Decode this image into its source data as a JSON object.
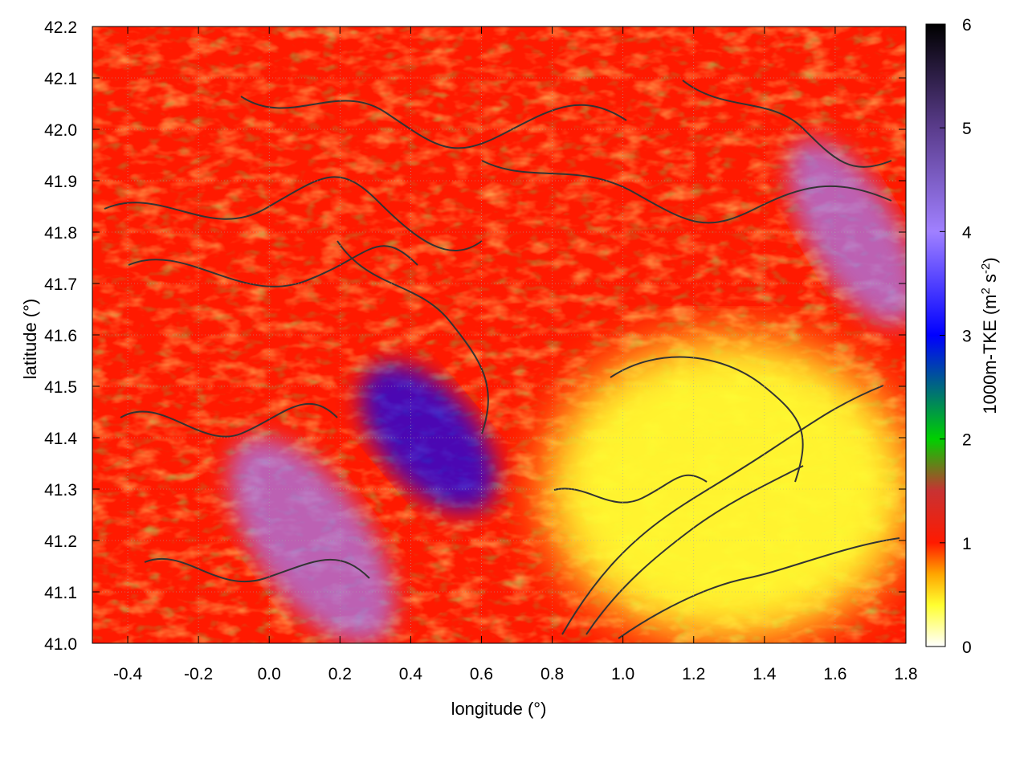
{
  "chart_data": {
    "type": "heatmap",
    "title": "",
    "xlabel": "longitude (°)",
    "ylabel": "latitude (°)",
    "xlim": [
      -0.5,
      1.8
    ],
    "ylim": [
      41.0,
      42.2
    ],
    "x_ticks": [
      -0.4,
      -0.2,
      0.0,
      0.2,
      0.4,
      0.6,
      0.8,
      1.0,
      1.2,
      1.4,
      1.6,
      1.8
    ],
    "x_tick_labels": [
      "-0.4",
      "-0.2",
      "0.0",
      "0.2",
      "0.4",
      "0.6",
      "0.8",
      "1.0",
      "1.2",
      "1.4",
      "1.6",
      "1.8"
    ],
    "y_ticks": [
      41.0,
      41.1,
      41.2,
      41.3,
      41.4,
      41.5,
      41.6,
      41.7,
      41.8,
      41.9,
      42.0,
      42.1,
      42.2
    ],
    "y_tick_labels": [
      "41.0",
      "41.1",
      "41.2",
      "41.3",
      "41.4",
      "41.5",
      "41.6",
      "41.7",
      "41.8",
      "41.9",
      "42.0",
      "42.1",
      "42.2"
    ],
    "grid": true,
    "colorbar": {
      "label_main": "1000m-TKE (m",
      "label_sup1": "2",
      "label_mid": " s",
      "label_sup2": "-2",
      "label_end": ")",
      "range": [
        0,
        6
      ],
      "ticks": [
        0,
        1,
        2,
        3,
        4,
        5,
        6
      ],
      "tick_labels": [
        "0",
        "1",
        "2",
        "3",
        "4",
        "5",
        "6"
      ],
      "stops": [
        {
          "value": 0.0,
          "color": "#ffffff"
        },
        {
          "value": 0.4,
          "color": "#ffff30"
        },
        {
          "value": 0.7,
          "color": "#ffa500"
        },
        {
          "value": 1.0,
          "color": "#ff1a00"
        },
        {
          "value": 1.5,
          "color": "#c83232"
        },
        {
          "value": 2.0,
          "color": "#00d000"
        },
        {
          "value": 3.0,
          "color": "#0000ff"
        },
        {
          "value": 4.0,
          "color": "#a080ff"
        },
        {
          "value": 5.0,
          "color": "#5a3c8c"
        },
        {
          "value": 6.0,
          "color": "#000000"
        }
      ]
    },
    "contour_color": "#333333",
    "field_regions": [
      {
        "name": "background",
        "lon_range": [
          -0.5,
          1.8
        ],
        "lat_range": [
          41.0,
          42.2
        ],
        "tke": 1.1
      },
      {
        "name": "high-tke-band-west",
        "lon": 0.12,
        "lat": 41.2,
        "tke": 3.8
      },
      {
        "name": "high-tke-band-center",
        "lon": 0.45,
        "lat": 41.4,
        "tke": 3.2
      },
      {
        "name": "high-tke-ridge-northeast",
        "lon": 1.65,
        "lat": 41.8,
        "tke": 4.3
      },
      {
        "name": "low-tke-southeast",
        "lon": 1.3,
        "lat": 41.3,
        "tke": 0.2
      }
    ]
  }
}
